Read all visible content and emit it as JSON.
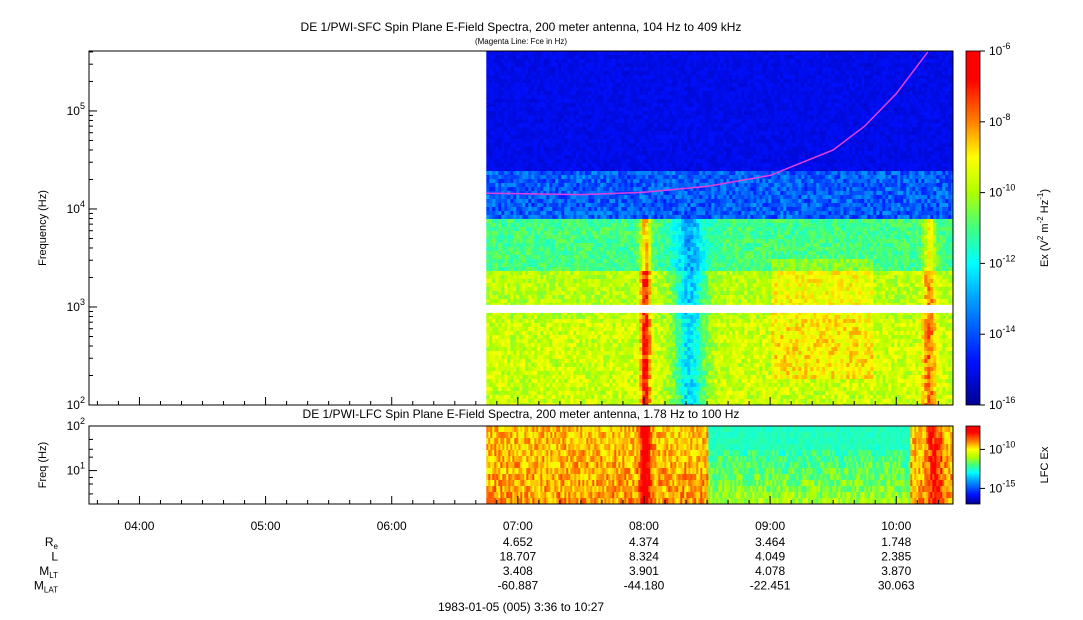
{
  "colors": {
    "background": "#ffffff",
    "fce_line": "#e040e0",
    "frame": "#000000"
  },
  "colorbar_stops": [
    "#0000a0",
    "#0010ff",
    "#00a0ff",
    "#00ffff",
    "#40ff80",
    "#b0ff00",
    "#ffff00",
    "#ff8000",
    "#ff0000",
    "#ff0000"
  ],
  "chart_data": [
    {
      "type": "heatmap",
      "title": "DE 1/PWI-SFC  Spin Plane E-Field Spectra, 200 meter antenna, 104 Hz to 409 kHz",
      "subtitle": "(Magenta Line: Fce in Hz)",
      "ylabel": "Frequency (Hz)",
      "yscale": "log",
      "ylim": [
        100,
        409000
      ],
      "yticks": [
        {
          "value": 100,
          "base": "10",
          "exp": "2"
        },
        {
          "value": 1000,
          "base": "10",
          "exp": "3"
        },
        {
          "value": 10000,
          "base": "10",
          "exp": "4"
        },
        {
          "value": 100000,
          "base": "10",
          "exp": "5"
        }
      ],
      "colorbar": {
        "label_main": "Ex (V",
        "label_sup1": "2",
        "label_mid1": " m",
        "label_sup2": "-2",
        "label_mid2": " Hz",
        "label_sup3": "-1",
        "label_end": ")",
        "scale": "log",
        "range": [
          1e-16,
          1e-06
        ],
        "ticks": [
          {
            "value": 1e-06,
            "base": "10",
            "exp": "-6"
          },
          {
            "value": 1e-08,
            "base": "10",
            "exp": "-8"
          },
          {
            "value": 1e-10,
            "base": "10",
            "exp": "-10"
          },
          {
            "value": 1e-12,
            "base": "10",
            "exp": "-12"
          },
          {
            "value": 1e-14,
            "base": "10",
            "exp": "-14"
          },
          {
            "value": 1e-16,
            "base": "10",
            "exp": "-16"
          }
        ]
      },
      "data_start_utc": "06:45",
      "gap_band_hz": [
        870,
        1050
      ],
      "fce_line": {
        "name": "Fce",
        "t_hours": [
          6.75,
          7.5,
          8.0,
          8.5,
          9.0,
          9.5,
          9.75,
          10.0,
          10.25
        ],
        "freq_hz": [
          14500,
          14000,
          14800,
          17000,
          22000,
          40000,
          70000,
          150000,
          400000
        ]
      }
    },
    {
      "type": "heatmap",
      "title": "DE 1/PWI-LFC  Spin Plane E-Field Spectra, 200 meter antenna, 1.78 Hz to 100 Hz",
      "ylabel": "Freq (Hz)",
      "yscale": "log",
      "ylim": [
        1.78,
        100
      ],
      "yticks": [
        {
          "value": 10,
          "base": "10",
          "exp": "1"
        },
        {
          "value": 100,
          "base": "10",
          "exp": "2"
        }
      ],
      "colorbar": {
        "label": "LFC Ex",
        "scale": "log",
        "range": [
          1e-17,
          1e-07
        ],
        "ticks": [
          {
            "value": 1e-10,
            "base": "10",
            "exp": "-10"
          },
          {
            "value": 1e-15,
            "base": "10",
            "exp": "-15"
          }
        ]
      },
      "data_start_utc": "06:45"
    }
  ],
  "time_axis": {
    "start_hours": 3.6,
    "end_hours": 10.45,
    "ticks": [
      {
        "t": 4,
        "label": "04:00"
      },
      {
        "t": 5,
        "label": "05:00"
      },
      {
        "t": 6,
        "label": "06:00"
      },
      {
        "t": 7,
        "label": "07:00"
      },
      {
        "t": 8,
        "label": "08:00"
      },
      {
        "t": 9,
        "label": "09:00"
      },
      {
        "t": 10,
        "label": "10:00"
      }
    ]
  },
  "ephemeris": {
    "rows": [
      {
        "label": "R",
        "sub": "e",
        "values": [
          "",
          "",
          "",
          "4.652",
          "4.374",
          "3.464",
          "1.748"
        ]
      },
      {
        "label": "L",
        "sub": "",
        "values": [
          "",
          "",
          "",
          "18.707",
          "8.324",
          "4.049",
          "2.385"
        ]
      },
      {
        "label": "M",
        "sub": "LT",
        "values": [
          "",
          "",
          "",
          "3.408",
          "3.901",
          "4.078",
          "3.870"
        ]
      },
      {
        "label": "M",
        "sub": "LAT",
        "values": [
          "",
          "",
          "",
          "-60.887",
          "-44.180",
          "-22.451",
          "30.063"
        ]
      }
    ]
  },
  "footer": "1983-01-05 (005) 3:36 to 10:27"
}
